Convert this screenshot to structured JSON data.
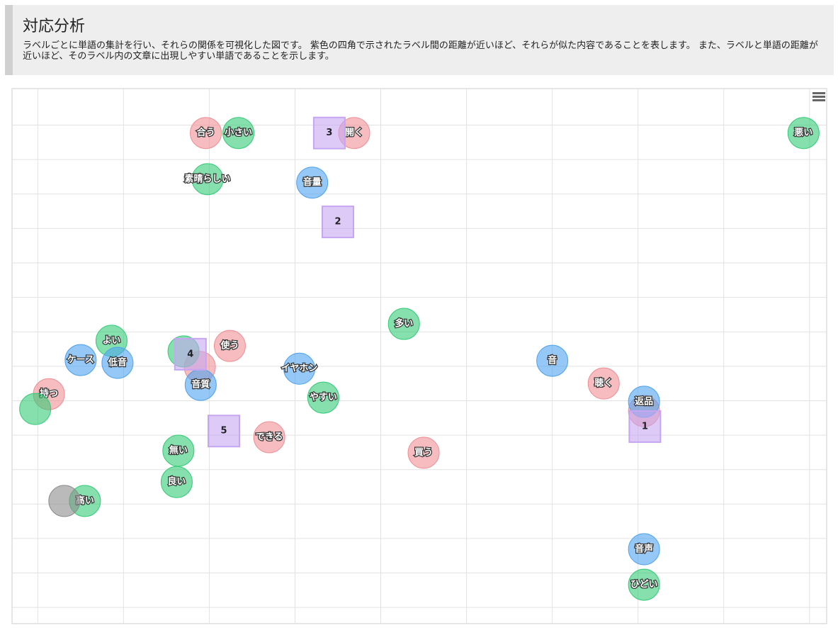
{
  "header": {
    "title": "対応分析",
    "description": "ラベルごとに単語の集計を行い、それらの関係を可視化した図です。 紫色の四角で示されたラベル間の距離が近いほど、それらが似た内容であることを表します。 また、ラベルと単語の距離が近いほど、そのラベル内の文章に出現しやすい単語であることを示します。"
  },
  "chart_data": {
    "type": "scatter",
    "xlim": [
      -0.3,
      9.2
    ],
    "ylim": [
      -0.47,
      15.06
    ],
    "xticks": [
      0,
      1,
      2,
      3,
      4,
      5,
      6,
      7,
      8,
      9
    ],
    "yticks": [
      0,
      1,
      2,
      3,
      4,
      5,
      6,
      7,
      8,
      9,
      10,
      11,
      12,
      13,
      14
    ],
    "grid": true,
    "series": [
      {
        "color": "#f08f95",
        "marker": "circle",
        "labels": [
          "合う",
          "開く",
          "使う",
          null,
          "持つ",
          "聴く",
          "できる",
          "買う",
          null
        ],
        "x": [
          1.96,
          3.69,
          2.24,
          1.89,
          0.13,
          6.6,
          2.7,
          4.5,
          7.07
        ],
        "y": [
          13.77,
          13.77,
          7.59,
          6.98,
          6.19,
          6.5,
          4.94,
          4.49,
          5.7
        ]
      },
      {
        "color": "#33cc77",
        "marker": "circle",
        "labels": [
          "小さい",
          "悪い",
          "素晴らしい",
          "多い",
          "よい",
          null,
          "やすい",
          null,
          "無い",
          "良い",
          "高い",
          "ひどい"
        ],
        "x": [
          2.34,
          8.93,
          1.98,
          4.27,
          0.86,
          1.7,
          3.33,
          -0.03,
          1.64,
          1.62,
          0.55,
          7.07
        ],
        "y": [
          13.77,
          13.77,
          12.43,
          8.23,
          7.74,
          7.43,
          6.09,
          5.76,
          4.55,
          3.64,
          3.09,
          0.66
        ]
      },
      {
        "color": "#4fa3f0",
        "marker": "circle",
        "labels": [
          "音量",
          "ケース",
          "低音",
          "イヤホン",
          "音質",
          "音",
          "返品",
          "音声"
        ],
        "x": [
          3.2,
          0.5,
          0.93,
          3.05,
          1.9,
          6.0,
          7.07,
          7.07
        ],
        "y": [
          12.33,
          7.18,
          7.1,
          6.93,
          6.46,
          7.16,
          5.97,
          1.69
        ]
      },
      {
        "color": "#8c8c8c",
        "marker": "circle",
        "labels": [
          null
        ],
        "x": [
          0.31
        ],
        "y": [
          3.09
        ]
      },
      {
        "color": "#c6a6f2",
        "marker": "square",
        "labels": [
          "3",
          "2",
          "4",
          "5",
          "1"
        ],
        "x": [
          3.4,
          3.5,
          1.78,
          2.17,
          7.08
        ],
        "y": [
          13.77,
          11.19,
          7.35,
          5.12,
          5.25
        ]
      }
    ]
  }
}
